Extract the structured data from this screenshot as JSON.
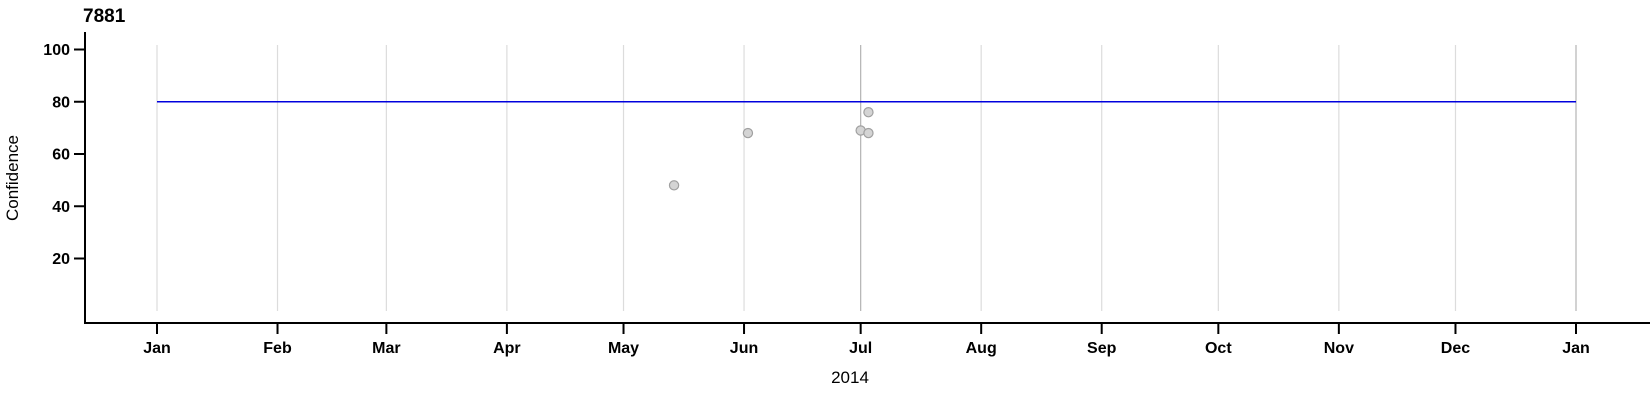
{
  "chart_data": {
    "type": "scatter",
    "title": "7881",
    "ylabel": "Confidence",
    "xlabel": "2014",
    "x_tick_labels": [
      "Jan",
      "Feb",
      "Mar",
      "Apr",
      "May",
      "Jun",
      "Jul",
      "Aug",
      "Sep",
      "Oct",
      "Nov",
      "Dec",
      "Jan"
    ],
    "month_start_doys": [
      1,
      32,
      60,
      91,
      121,
      152,
      182,
      213,
      244,
      274,
      305,
      335,
      366
    ],
    "y_ticks": [
      20,
      40,
      60,
      80,
      100
    ],
    "ylim": [
      0,
      105
    ],
    "x_range": [
      "2014-01-01",
      "2015-01-01"
    ],
    "grid": "vertical-month-gridlines",
    "legend": null,
    "points": [
      {
        "date": "2014-05-14",
        "value": 48
      },
      {
        "date": "2014-06-02",
        "value": 68
      },
      {
        "date": "2014-07-01",
        "value": 69
      },
      {
        "date": "2014-07-03",
        "value": 68
      },
      {
        "date": "2014-07-03",
        "value": 76
      }
    ],
    "reference_line": {
      "value": 80
    },
    "marker_line_dates": [
      "2014-07-01",
      "2015-01-01"
    ],
    "colors": {
      "background": "#ffffff",
      "axis": "#000000",
      "grid": "#dcdcdc",
      "marker_line": "#b3b3b3",
      "reference_line": "#0000dd",
      "point_fill": "#d4d4d4",
      "point_stroke": "#a0a0a0"
    }
  }
}
